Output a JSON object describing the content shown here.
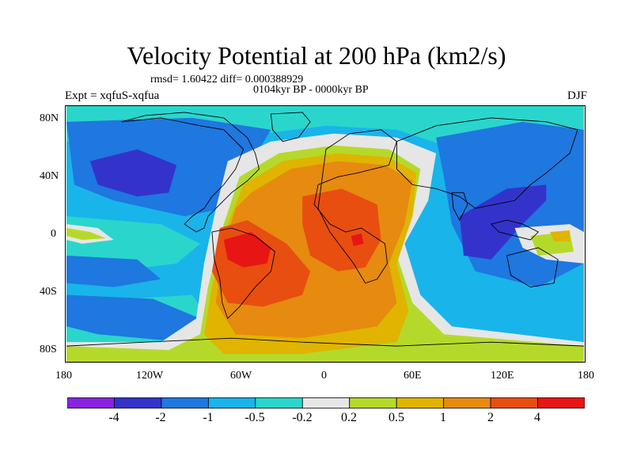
{
  "title": "Velocity Potential at 200 hPa (km2/s)",
  "stats": "rmsd= 1.60422 diff= 0.000388929",
  "period": "0104kyr BP - 0000kyr BP",
  "experiment": "Expt = xqfuS-xqfua",
  "season": "DJF",
  "lat_ticks": [
    "80N",
    "40N",
    "0",
    "40S",
    "80S"
  ],
  "lon_ticks": [
    "180",
    "120W",
    "60W",
    "0",
    "60E",
    "120E",
    "180"
  ],
  "colorbar": {
    "colors": [
      "#8a22e2",
      "#3333cc",
      "#1f77e0",
      "#19b4ea",
      "#2ad6cc",
      "#e6e6e6",
      "#b5d92b",
      "#e0b400",
      "#e68a10",
      "#e84e10",
      "#e81515"
    ],
    "labels": [
      "-4",
      "-2",
      "-1",
      "-0.5",
      "-0.2",
      "0.2",
      "0.5",
      "1",
      "2",
      "4"
    ]
  },
  "icons": [
    "world-coastline-map"
  ]
}
